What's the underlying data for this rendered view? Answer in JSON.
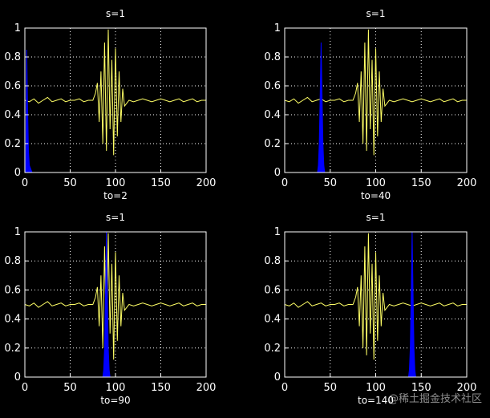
{
  "watermark": "@稀土掘金技术社区",
  "colors": {
    "background": "#000000",
    "axis": "#ffffff",
    "signal": "#ffff66",
    "window": "#0000ff"
  },
  "chart_data": [
    {
      "type": "line",
      "title": "s=1",
      "xlabel": "to=2",
      "xlim": [
        0,
        200
      ],
      "ylim": [
        0,
        1
      ],
      "xticks": [
        0,
        50,
        100,
        150,
        200
      ],
      "xtick_labels": [
        "0",
        "50",
        "100",
        "150",
        "200"
      ],
      "yticks": [
        0,
        0.2,
        0.4,
        0.6,
        0.8,
        1
      ],
      "ytick_labels": [
        "0",
        "0.2",
        "0.4",
        "0.6",
        "0.8",
        "1"
      ],
      "grid": true,
      "series": [
        {
          "kind": "signal",
          "x": [
            0,
            5,
            10,
            15,
            20,
            25,
            30,
            35,
            40,
            45,
            50,
            55,
            60,
            65,
            70,
            75,
            78,
            80,
            82,
            84,
            86,
            88,
            90,
            92,
            94,
            96,
            98,
            100,
            102,
            104,
            106,
            108,
            110,
            115,
            120,
            125,
            130,
            135,
            140,
            145,
            150,
            155,
            160,
            165,
            170,
            175,
            180,
            185,
            190,
            195,
            200
          ],
          "y": [
            0.5,
            0.49,
            0.51,
            0.48,
            0.5,
            0.52,
            0.49,
            0.5,
            0.51,
            0.49,
            0.5,
            0.5,
            0.51,
            0.49,
            0.5,
            0.5,
            0.55,
            0.62,
            0.35,
            0.7,
            0.2,
            0.9,
            0.15,
            0.99,
            0.3,
            0.78,
            0.12,
            0.86,
            0.25,
            0.7,
            0.35,
            0.58,
            0.46,
            0.5,
            0.49,
            0.5,
            0.51,
            0.5,
            0.49,
            0.5,
            0.51,
            0.5,
            0.49,
            0.5,
            0.51,
            0.49,
            0.5,
            0.51,
            0.49,
            0.5,
            0.5
          ]
        },
        {
          "kind": "window",
          "x": [
            1,
            2,
            3,
            4,
            5,
            8,
            20,
            45
          ],
          "y": [
            0,
            0.85,
            0.45,
            0.15,
            0.05,
            0,
            0,
            0
          ]
        }
      ]
    },
    {
      "type": "line",
      "title": "s=1",
      "xlabel": "to=40",
      "xlim": [
        0,
        200
      ],
      "ylim": [
        0,
        1
      ],
      "xticks": [
        0,
        50,
        100,
        150,
        200
      ],
      "xtick_labels": [
        "0",
        "50",
        "100",
        "150",
        "200"
      ],
      "yticks": [
        0,
        0.2,
        0.4,
        0.6,
        0.8,
        1
      ],
      "ytick_labels": [
        "0",
        "0.2",
        "0.4",
        "0.6",
        "0.8",
        "1"
      ],
      "grid": true,
      "series": [
        {
          "kind": "signal",
          "x": [
            0,
            5,
            10,
            15,
            20,
            25,
            30,
            35,
            40,
            45,
            50,
            55,
            60,
            65,
            70,
            75,
            78,
            80,
            82,
            84,
            86,
            88,
            90,
            92,
            94,
            96,
            98,
            100,
            102,
            104,
            106,
            108,
            110,
            115,
            120,
            125,
            130,
            135,
            140,
            145,
            150,
            155,
            160,
            165,
            170,
            175,
            180,
            185,
            190,
            195,
            200
          ],
          "y": [
            0.5,
            0.49,
            0.51,
            0.48,
            0.5,
            0.52,
            0.49,
            0.5,
            0.51,
            0.49,
            0.5,
            0.5,
            0.51,
            0.49,
            0.5,
            0.5,
            0.55,
            0.62,
            0.35,
            0.7,
            0.2,
            0.9,
            0.15,
            0.99,
            0.3,
            0.78,
            0.12,
            0.86,
            0.25,
            0.7,
            0.35,
            0.58,
            0.46,
            0.5,
            0.49,
            0.5,
            0.51,
            0.5,
            0.49,
            0.5,
            0.51,
            0.5,
            0.49,
            0.5,
            0.51,
            0.49,
            0.5,
            0.51,
            0.49,
            0.5,
            0.5
          ]
        },
        {
          "kind": "window",
          "x": [
            36,
            37,
            38,
            39,
            40,
            41,
            42,
            43,
            44
          ],
          "y": [
            0,
            0.05,
            0.2,
            0.55,
            0.9,
            0.55,
            0.2,
            0.05,
            0
          ]
        }
      ]
    },
    {
      "type": "line",
      "title": "s=1",
      "xlabel": "to=90",
      "xlim": [
        0,
        200
      ],
      "ylim": [
        0,
        1
      ],
      "xticks": [
        0,
        50,
        100,
        150,
        200
      ],
      "xtick_labels": [
        "0",
        "50",
        "100",
        "150",
        "200"
      ],
      "yticks": [
        0,
        0.2,
        0.4,
        0.6,
        0.8,
        1
      ],
      "ytick_labels": [
        "0",
        "0.2",
        "0.4",
        "0.6",
        "0.8",
        "1"
      ],
      "grid": true,
      "series": [
        {
          "kind": "signal",
          "x": [
            0,
            5,
            10,
            15,
            20,
            25,
            30,
            35,
            40,
            45,
            50,
            55,
            60,
            65,
            70,
            75,
            78,
            80,
            82,
            84,
            86,
            88,
            90,
            92,
            94,
            96,
            98,
            100,
            102,
            104,
            106,
            108,
            110,
            115,
            120,
            125,
            130,
            135,
            140,
            145,
            150,
            155,
            160,
            165,
            170,
            175,
            180,
            185,
            190,
            195,
            200
          ],
          "y": [
            0.5,
            0.49,
            0.51,
            0.48,
            0.5,
            0.52,
            0.49,
            0.5,
            0.51,
            0.49,
            0.5,
            0.5,
            0.51,
            0.49,
            0.5,
            0.5,
            0.55,
            0.62,
            0.35,
            0.7,
            0.2,
            0.9,
            0.15,
            0.99,
            0.3,
            0.78,
            0.12,
            0.86,
            0.25,
            0.7,
            0.35,
            0.58,
            0.46,
            0.5,
            0.49,
            0.5,
            0.51,
            0.5,
            0.49,
            0.5,
            0.51,
            0.5,
            0.49,
            0.5,
            0.51,
            0.49,
            0.5,
            0.51,
            0.49,
            0.5,
            0.5
          ]
        },
        {
          "kind": "window",
          "x": [
            86,
            87,
            88,
            89,
            90,
            91,
            92,
            93,
            94
          ],
          "y": [
            0,
            0.05,
            0.2,
            0.6,
            1.0,
            0.6,
            0.2,
            0.05,
            0
          ]
        }
      ]
    },
    {
      "type": "line",
      "title": "s=1",
      "xlabel": "to=140",
      "xlim": [
        0,
        200
      ],
      "ylim": [
        0,
        1
      ],
      "xticks": [
        0,
        50,
        100,
        150,
        200
      ],
      "xtick_labels": [
        "0",
        "50",
        "100",
        "150",
        "200"
      ],
      "yticks": [
        0,
        0.2,
        0.4,
        0.6,
        0.8,
        1
      ],
      "ytick_labels": [
        "0",
        "0.2",
        "0.4",
        "0.6",
        "0.8",
        "1"
      ],
      "grid": true,
      "series": [
        {
          "kind": "signal",
          "x": [
            0,
            5,
            10,
            15,
            20,
            25,
            30,
            35,
            40,
            45,
            50,
            55,
            60,
            65,
            70,
            75,
            78,
            80,
            82,
            84,
            86,
            88,
            90,
            92,
            94,
            96,
            98,
            100,
            102,
            104,
            106,
            108,
            110,
            115,
            120,
            125,
            130,
            135,
            140,
            145,
            150,
            155,
            160,
            165,
            170,
            175,
            180,
            185,
            190,
            195,
            200
          ],
          "y": [
            0.5,
            0.49,
            0.51,
            0.48,
            0.5,
            0.52,
            0.49,
            0.5,
            0.51,
            0.49,
            0.5,
            0.5,
            0.51,
            0.49,
            0.5,
            0.5,
            0.55,
            0.62,
            0.35,
            0.7,
            0.2,
            0.9,
            0.15,
            0.99,
            0.3,
            0.78,
            0.12,
            0.86,
            0.25,
            0.7,
            0.35,
            0.58,
            0.46,
            0.5,
            0.49,
            0.5,
            0.51,
            0.5,
            0.49,
            0.5,
            0.51,
            0.5,
            0.49,
            0.5,
            0.51,
            0.49,
            0.5,
            0.51,
            0.49,
            0.5,
            0.5
          ]
        },
        {
          "kind": "window",
          "x": [
            136,
            137,
            138,
            139,
            140,
            141,
            142,
            143,
            144
          ],
          "y": [
            0,
            0.05,
            0.2,
            0.6,
            1.0,
            0.6,
            0.2,
            0.05,
            0
          ]
        }
      ]
    }
  ]
}
